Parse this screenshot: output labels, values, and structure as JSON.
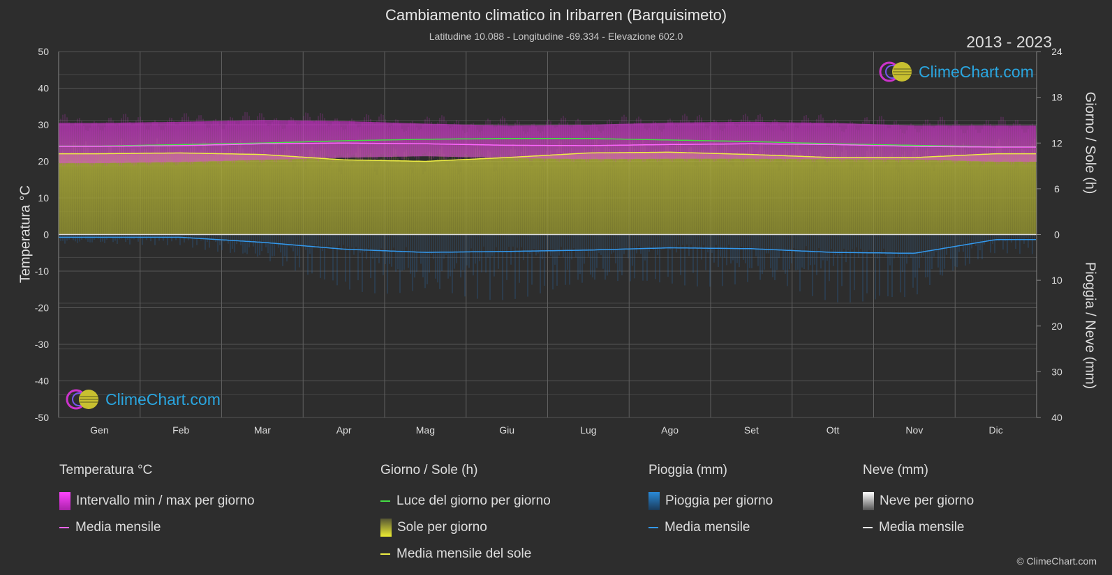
{
  "header": {
    "title": "Cambiamento climatico in Iribarren (Barquisimeto)",
    "subtitle": "Latitudine 10.088 - Longitudine -69.334 - Elevazione 602.0",
    "years": "2013 - 2023"
  },
  "logo_text": "ClimeChart.com",
  "copyright": "© ClimeChart.com",
  "chart_data": {
    "type": "area",
    "categories": [
      "Gen",
      "Feb",
      "Mar",
      "Apr",
      "Mag",
      "Giu",
      "Lug",
      "Ago",
      "Set",
      "Ott",
      "Nov",
      "Dic"
    ],
    "y_left": {
      "label": "Temperatura °C",
      "range": [
        -50,
        50
      ],
      "ticks": [
        "50",
        "40",
        "30",
        "20",
        "10",
        "0",
        "-10",
        "-20",
        "-30",
        "-40",
        "-50"
      ]
    },
    "y_right_top": {
      "label": "Giorno / Sole (h)",
      "range": [
        0,
        24
      ],
      "ticks": [
        "24",
        "18",
        "12",
        "6",
        "0"
      ]
    },
    "y_right_bottom": {
      "label": "Pioggia / Neve (mm)",
      "range": [
        0,
        40
      ],
      "ticks": [
        "10",
        "20",
        "30",
        "40"
      ]
    },
    "series": {
      "temp_max": [
        30.5,
        30.8,
        31.3,
        31.0,
        30.3,
        29.8,
        30.0,
        30.6,
        30.8,
        30.5,
        29.8,
        29.8
      ],
      "temp_min": [
        19.5,
        19.8,
        20.4,
        21.0,
        21.4,
        20.9,
        20.6,
        20.7,
        20.7,
        20.6,
        20.5,
        19.9
      ],
      "temp_mean_monthly": [
        24.1,
        24.3,
        24.8,
        25.0,
        24.8,
        24.4,
        24.3,
        24.6,
        24.8,
        24.6,
        24.1,
        23.9
      ],
      "daylight_hours": [
        11.6,
        11.8,
        12.0,
        12.3,
        12.5,
        12.6,
        12.6,
        12.4,
        12.2,
        11.9,
        11.7,
        11.5
      ],
      "sunshine_hours_monthly": [
        10.6,
        10.7,
        10.5,
        9.8,
        9.6,
        10.1,
        10.7,
        10.8,
        10.5,
        10.1,
        10.1,
        10.6
      ],
      "rain_mean_monthly_mm": [
        0.6,
        0.6,
        1.7,
        3.2,
        3.9,
        3.7,
        3.4,
        2.9,
        3.1,
        3.9,
        4.1,
        1.1
      ],
      "snow_mean_monthly_mm": [
        0,
        0,
        0,
        0,
        0,
        0,
        0,
        0,
        0,
        0,
        0,
        0
      ]
    },
    "grid": true
  },
  "legend": {
    "temperature": {
      "header": "Temperatura °C",
      "items": [
        {
          "label": "Intervallo min / max per giorno",
          "color": "#e040e0"
        },
        {
          "label": "Media mensile",
          "color": "#ff66ff"
        }
      ]
    },
    "day_sun": {
      "header": "Giorno / Sole (h)",
      "items": [
        {
          "label": "Luce del giorno per giorno",
          "color": "#44dd44"
        },
        {
          "label": "Sole per giorno",
          "color": "#cccc33"
        },
        {
          "label": "Media mensile del sole",
          "color": "#eeee44"
        }
      ]
    },
    "rain": {
      "header": "Pioggia (mm)",
      "items": [
        {
          "label": "Pioggia per giorno",
          "color": "#2a8ad8"
        },
        {
          "label": "Media mensile",
          "color": "#3399ee"
        }
      ]
    },
    "snow": {
      "header": "Neve (mm)",
      "items": [
        {
          "label": "Neve per giorno",
          "color": "#dddddd"
        },
        {
          "label": "Media mensile",
          "color": "#ffffff"
        }
      ]
    }
  }
}
